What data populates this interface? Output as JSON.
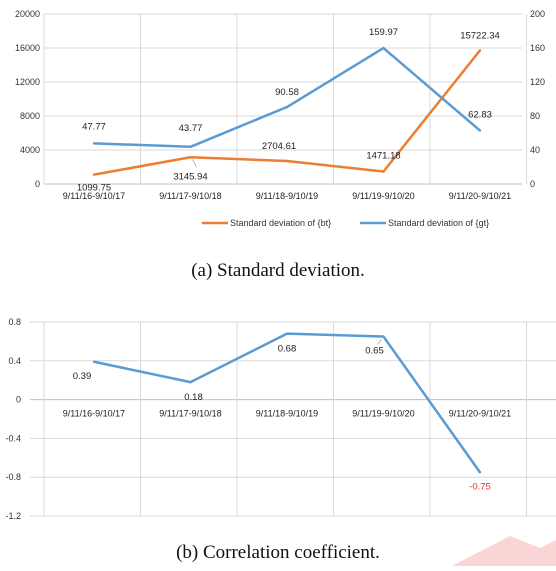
{
  "chart_data": [
    {
      "type": "line",
      "categories": [
        "9/11/16-9/10/17",
        "9/11/17-9/10/18",
        "9/11/18-9/10/19",
        "9/11/19-9/10/20",
        "9/11/20-9/10/21"
      ],
      "series": [
        {
          "name": "Standard deviation of {bt}",
          "axis": "left",
          "color": "#ed7d31",
          "values": [
            1099.75,
            3145.94,
            2704.61,
            1471.18,
            15722.34
          ],
          "labels": [
            "1099.75",
            "3145.94",
            "2704.61",
            "1471.18",
            "15722.34"
          ]
        },
        {
          "name": "Standard deviation of {gt}",
          "axis": "right",
          "color": "#5b9bd5",
          "values": [
            47.77,
            43.77,
            90.58,
            159.97,
            62.83
          ],
          "labels": [
            "47.77",
            "43.77",
            "90.58",
            "159.97",
            "62.83"
          ]
        }
      ],
      "left_axis": {
        "ylim": [
          0,
          20000
        ],
        "ticks": [
          "0",
          "4000",
          "8000",
          "12000",
          "16000",
          "20000"
        ]
      },
      "right_axis": {
        "ylim": [
          0,
          200
        ],
        "ticks": [
          "0",
          "40",
          "80",
          "120",
          "160",
          "200"
        ]
      },
      "grid": true,
      "legend": "bottom",
      "caption": "(a)  Standard deviation."
    },
    {
      "type": "line",
      "categories": [
        "9/11/16-9/10/17",
        "9/11/17-9/10/18",
        "9/11/18-9/10/19",
        "9/11/19-9/10/20",
        "9/11/20-9/10/21"
      ],
      "series": [
        {
          "color": "#5b9bd5",
          "values": [
            0.39,
            0.18,
            0.68,
            0.65,
            -0.75
          ],
          "labels": [
            "0.39",
            "0.18",
            "0.68",
            "0.65",
            "-0.75"
          ],
          "label_colors": [
            "#222222",
            "#222222",
            "#222222",
            "#222222",
            "#e03030"
          ]
        }
      ],
      "ylim": [
        -1.2,
        0.8
      ],
      "ticks": [
        "0.8",
        "0.4",
        "0",
        "-0.4",
        "-0.8",
        "-1.2"
      ],
      "grid": true,
      "caption": "(b)  Correlation coefficient."
    }
  ]
}
